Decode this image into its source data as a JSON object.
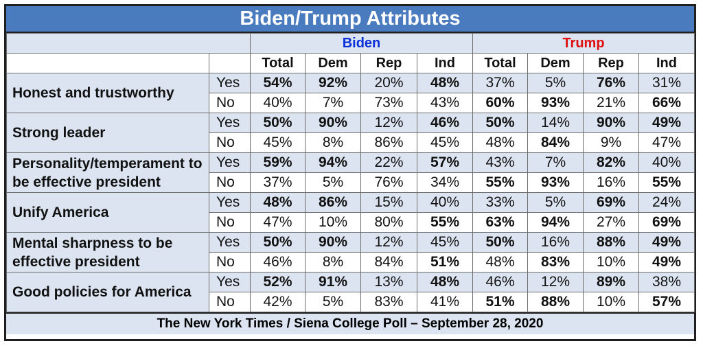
{
  "title": "Biden/Trump Attributes",
  "footer": "The New York Times / Siena College Poll – September 28, 2020",
  "colors": {
    "header_bg": "#4a7bbf",
    "band_bg": "#dbe4f0",
    "biden": "#0b2fd8",
    "trump": "#e01010"
  },
  "chart_data": {
    "type": "table",
    "title": "Biden/Trump Attributes",
    "groups": [
      "Biden",
      "Trump"
    ],
    "columns": [
      "Total",
      "Dem",
      "Rep",
      "Ind"
    ],
    "rows": [
      {
        "label": "Honest and trustworthy",
        "yes": {
          "label": "Yes",
          "values": [
            "54%",
            "92%",
            "20%",
            "48%",
            "37%",
            "5%",
            "76%",
            "31%"
          ],
          "bold": [
            1,
            1,
            0,
            1,
            0,
            0,
            1,
            0
          ]
        },
        "no": {
          "label": "No",
          "values": [
            "40%",
            "7%",
            "73%",
            "43%",
            "60%",
            "93%",
            "21%",
            "66%"
          ],
          "bold": [
            0,
            0,
            0,
            0,
            1,
            1,
            0,
            1
          ]
        }
      },
      {
        "label": "Strong leader",
        "yes": {
          "label": "Yes",
          "values": [
            "50%",
            "90%",
            "12%",
            "46%",
            "50%",
            "14%",
            "90%",
            "49%"
          ],
          "bold": [
            1,
            1,
            0,
            1,
            1,
            0,
            1,
            1
          ]
        },
        "no": {
          "label": "No",
          "values": [
            "45%",
            "8%",
            "86%",
            "45%",
            "48%",
            "84%",
            "9%",
            "47%"
          ],
          "bold": [
            0,
            0,
            0,
            0,
            0,
            1,
            0,
            0
          ]
        }
      },
      {
        "label": "Personality/temperament to be effective president",
        "yes": {
          "label": "Yes",
          "values": [
            "59%",
            "94%",
            "22%",
            "57%",
            "43%",
            "7%",
            "82%",
            "40%"
          ],
          "bold": [
            1,
            1,
            0,
            1,
            0,
            0,
            1,
            0
          ]
        },
        "no": {
          "label": "No",
          "values": [
            "37%",
            "5%",
            "76%",
            "34%",
            "55%",
            "93%",
            "16%",
            "55%"
          ],
          "bold": [
            0,
            0,
            0,
            0,
            1,
            1,
            0,
            1
          ]
        }
      },
      {
        "label": "Unify America",
        "yes": {
          "label": "Yes",
          "values": [
            "48%",
            "86%",
            "15%",
            "40%",
            "33%",
            "5%",
            "69%",
            "24%"
          ],
          "bold": [
            1,
            1,
            0,
            0,
            0,
            0,
            1,
            0
          ]
        },
        "no": {
          "label": "No",
          "values": [
            "47%",
            "10%",
            "80%",
            "55%",
            "63%",
            "94%",
            "27%",
            "69%"
          ],
          "bold": [
            0,
            0,
            0,
            1,
            1,
            1,
            0,
            1
          ]
        }
      },
      {
        "label": "Mental sharpness to be effective president",
        "yes": {
          "label": "Yes",
          "values": [
            "50%",
            "90%",
            "12%",
            "45%",
            "50%",
            "16%",
            "88%",
            "49%"
          ],
          "bold": [
            1,
            1,
            0,
            0,
            1,
            0,
            1,
            1
          ]
        },
        "no": {
          "label": "No",
          "values": [
            "46%",
            "8%",
            "84%",
            "51%",
            "48%",
            "83%",
            "10%",
            "49%"
          ],
          "bold": [
            0,
            0,
            0,
            1,
            0,
            1,
            0,
            1
          ]
        }
      },
      {
        "label": "Good policies for America",
        "yes": {
          "label": "Yes",
          "values": [
            "52%",
            "91%",
            "13%",
            "48%",
            "46%",
            "12%",
            "89%",
            "38%"
          ],
          "bold": [
            1,
            1,
            0,
            1,
            0,
            0,
            1,
            0
          ]
        },
        "no": {
          "label": "No",
          "values": [
            "42%",
            "5%",
            "83%",
            "41%",
            "51%",
            "88%",
            "10%",
            "57%"
          ],
          "bold": [
            0,
            0,
            0,
            0,
            1,
            1,
            0,
            1
          ]
        }
      }
    ]
  }
}
